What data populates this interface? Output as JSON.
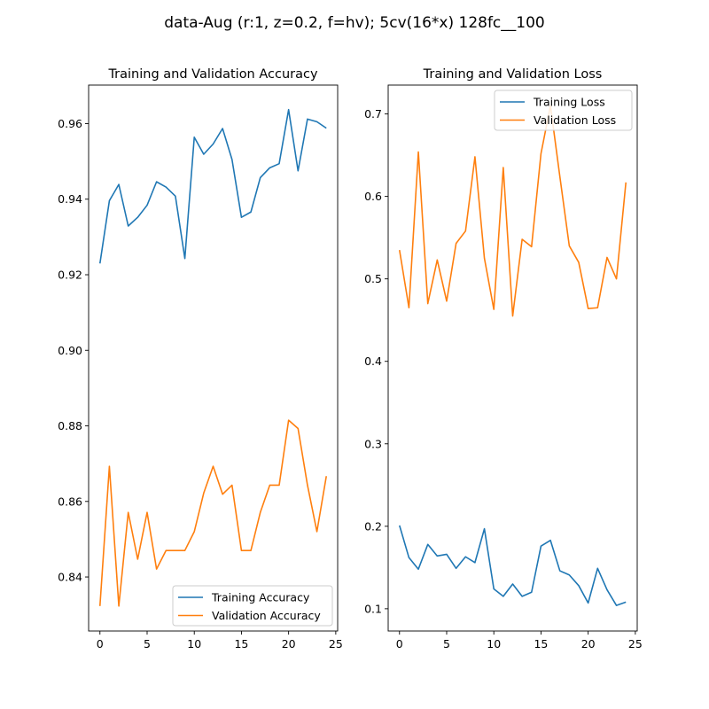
{
  "figure": {
    "suptitle": "data-Aug (r:1, z=0.2, f=hv); 5cv(16*x) 128fc__100"
  },
  "chart_data": [
    {
      "type": "line",
      "title": "Training and Validation Accuracy",
      "xlabel": "",
      "ylabel": "",
      "xlim": [
        -1.2,
        25.2
      ],
      "ylim": [
        0.8257,
        0.9702
      ],
      "xticks": [
        0,
        5,
        10,
        15,
        20,
        25
      ],
      "xtick_labels": [
        "0",
        "5",
        "10",
        "15",
        "20",
        "25"
      ],
      "yticks": [
        0.84,
        0.86,
        0.88,
        0.9,
        0.92,
        0.94,
        0.96
      ],
      "ytick_labels": [
        "0.84",
        "0.86",
        "0.88",
        "0.90",
        "0.92",
        "0.94",
        "0.96"
      ],
      "grid": false,
      "legend_position": "lower-right",
      "x": [
        0,
        1,
        2,
        3,
        4,
        5,
        6,
        7,
        8,
        9,
        10,
        11,
        12,
        13,
        14,
        15,
        16,
        17,
        18,
        19,
        20,
        21,
        22,
        23,
        24
      ],
      "series": [
        {
          "name": "Training Accuracy",
          "color": "#1f77b4",
          "values": [
            0.923,
            0.9396,
            0.9439,
            0.9329,
            0.9352,
            0.9384,
            0.9446,
            0.9432,
            0.9408,
            0.9243,
            0.9564,
            0.9519,
            0.9546,
            0.9587,
            0.9505,
            0.9352,
            0.9366,
            0.9457,
            0.9483,
            0.9494,
            0.9637,
            0.9475,
            0.9612,
            0.9605,
            0.9588
          ]
        },
        {
          "name": "Validation Accuracy",
          "color": "#ff7f0e",
          "values": [
            0.8323,
            0.8693,
            0.8323,
            0.8571,
            0.8447,
            0.8571,
            0.8421,
            0.847,
            0.847,
            0.847,
            0.852,
            0.8622,
            0.8693,
            0.8619,
            0.8643,
            0.847,
            0.847,
            0.8571,
            0.8643,
            0.8643,
            0.8815,
            0.8793,
            0.8643,
            0.852,
            0.8667
          ]
        }
      ]
    },
    {
      "type": "line",
      "title": "Training and Validation Loss",
      "xlabel": "",
      "ylabel": "",
      "xlim": [
        -1.2,
        25.2
      ],
      "ylim": [
        0.073,
        0.735
      ],
      "xticks": [
        0,
        5,
        10,
        15,
        20,
        25
      ],
      "xtick_labels": [
        "0",
        "5",
        "10",
        "15",
        "20",
        "25"
      ],
      "yticks": [
        0.1,
        0.2,
        0.3,
        0.4,
        0.5,
        0.6,
        0.7
      ],
      "ytick_labels": [
        "0.1",
        "0.2",
        "0.3",
        "0.4",
        "0.5",
        "0.6",
        "0.7"
      ],
      "grid": false,
      "legend_position": "upper-right",
      "x": [
        0,
        1,
        2,
        3,
        4,
        5,
        6,
        7,
        8,
        9,
        10,
        11,
        12,
        13,
        14,
        15,
        16,
        17,
        18,
        19,
        20,
        21,
        22,
        23,
        24
      ],
      "series": [
        {
          "name": "Training Loss",
          "color": "#1f77b4",
          "values": [
            0.201,
            0.162,
            0.148,
            0.178,
            0.164,
            0.166,
            0.149,
            0.163,
            0.156,
            0.197,
            0.124,
            0.115,
            0.13,
            0.115,
            0.12,
            0.176,
            0.183,
            0.146,
            0.141,
            0.128,
            0.107,
            0.149,
            0.123,
            0.104,
            0.108
          ]
        },
        {
          "name": "Validation Loss",
          "color": "#ff7f0e",
          "values": [
            0.535,
            0.465,
            0.654,
            0.47,
            0.523,
            0.473,
            0.543,
            0.558,
            0.648,
            0.525,
            0.463,
            0.635,
            0.455,
            0.548,
            0.539,
            0.652,
            0.71,
            0.624,
            0.54,
            0.52,
            0.464,
            0.465,
            0.526,
            0.5,
            0.617
          ]
        }
      ]
    }
  ]
}
